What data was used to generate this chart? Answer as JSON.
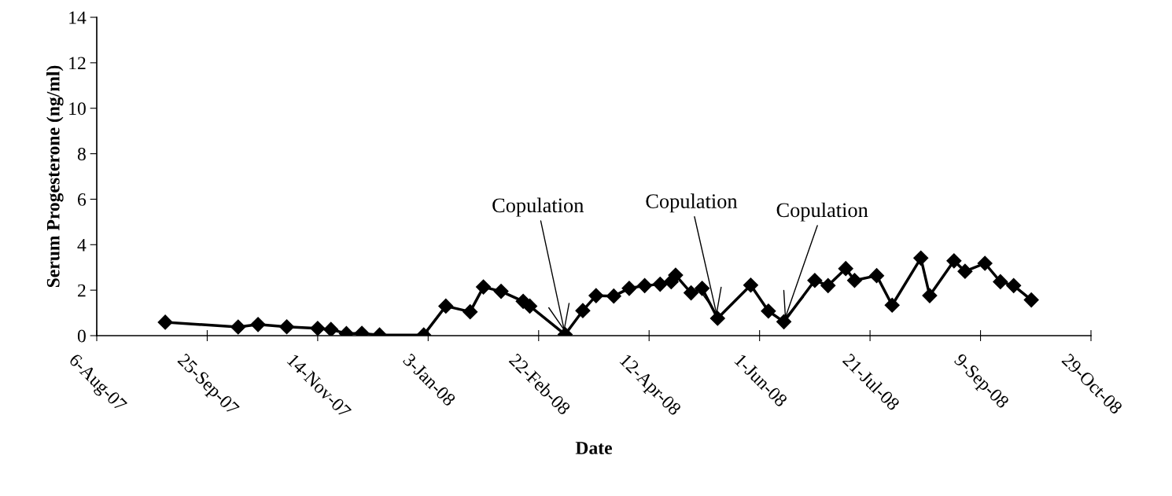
{
  "chart_data": {
    "type": "line",
    "xlabel": "Date",
    "ylabel": "Serum Progesterone (ng/ml)",
    "x": [
      "2007-09-06",
      "2007-10-09",
      "2007-10-18",
      "2007-10-31",
      "2007-11-14",
      "2007-11-20",
      "2007-11-27",
      "2007-12-04",
      "2007-12-12",
      "2008-01-01",
      "2008-01-11",
      "2008-01-22",
      "2008-01-28",
      "2008-02-05",
      "2008-02-15",
      "2008-02-18",
      "2008-03-05",
      "2008-03-13",
      "2008-03-19",
      "2008-03-27",
      "2008-04-03",
      "2008-04-10",
      "2008-04-17",
      "2008-04-22",
      "2008-04-24",
      "2008-05-01",
      "2008-05-06",
      "2008-05-13",
      "2008-05-28",
      "2008-06-05",
      "2008-06-12",
      "2008-06-26",
      "2008-07-02",
      "2008-07-10",
      "2008-07-14",
      "2008-07-24",
      "2008-07-31",
      "2008-08-13",
      "2008-08-17",
      "2008-08-28",
      "2008-09-02",
      "2008-09-11",
      "2008-09-18",
      "2008-09-24",
      "2008-10-02"
    ],
    "series": [
      {
        "color": "#000000",
        "values": [
          0.59,
          0.38,
          0.49,
          0.39,
          0.32,
          0.27,
          0.09,
          0.1,
          0.03,
          0.03,
          1.3,
          1.05,
          2.14,
          1.95,
          1.51,
          1.3,
          0.05,
          1.1,
          1.76,
          1.74,
          2.08,
          2.2,
          2.26,
          2.37,
          2.66,
          1.88,
          2.08,
          0.76,
          2.22,
          1.08,
          0.61,
          2.43,
          2.2,
          2.95,
          2.43,
          2.64,
          1.34,
          3.41,
          1.76,
          3.29,
          2.83,
          3.18,
          2.37,
          2.2,
          1.57
        ]
      }
    ],
    "marker": "diamond",
    "line_style": "solid",
    "grid": false,
    "legend": false,
    "xlim": [
      "2007-08-06",
      "2008-10-29"
    ],
    "xticks": [
      {
        "value": "2007-08-06",
        "label": "6-Aug-07"
      },
      {
        "value": "2007-09-25",
        "label": "25-Sep-07"
      },
      {
        "value": "2007-11-14",
        "label": "14-Nov-07"
      },
      {
        "value": "2008-01-03",
        "label": "3-Jan-08"
      },
      {
        "value": "2008-02-22",
        "label": "22-Feb-08"
      },
      {
        "value": "2008-04-12",
        "label": "12-Apr-08"
      },
      {
        "value": "2008-06-01",
        "label": "1-Jun-08"
      },
      {
        "value": "2008-07-21",
        "label": "21-Jul-08"
      },
      {
        "value": "2008-09-09",
        "label": "9-Sep-08"
      },
      {
        "value": "2008-10-29",
        "label": "29-Oct-08"
      }
    ],
    "ylim": [
      0,
      14
    ],
    "yticks": [
      0,
      2,
      4,
      6,
      8,
      10,
      12,
      14
    ],
    "annotations": [
      {
        "text": "Copulation",
        "x": "2008-03-05",
        "y": 0.05
      },
      {
        "text": "Copulation",
        "x": "2008-05-13",
        "y": 0.76
      },
      {
        "text": "Copulation",
        "x": "2008-06-12",
        "y": 0.61
      }
    ]
  }
}
